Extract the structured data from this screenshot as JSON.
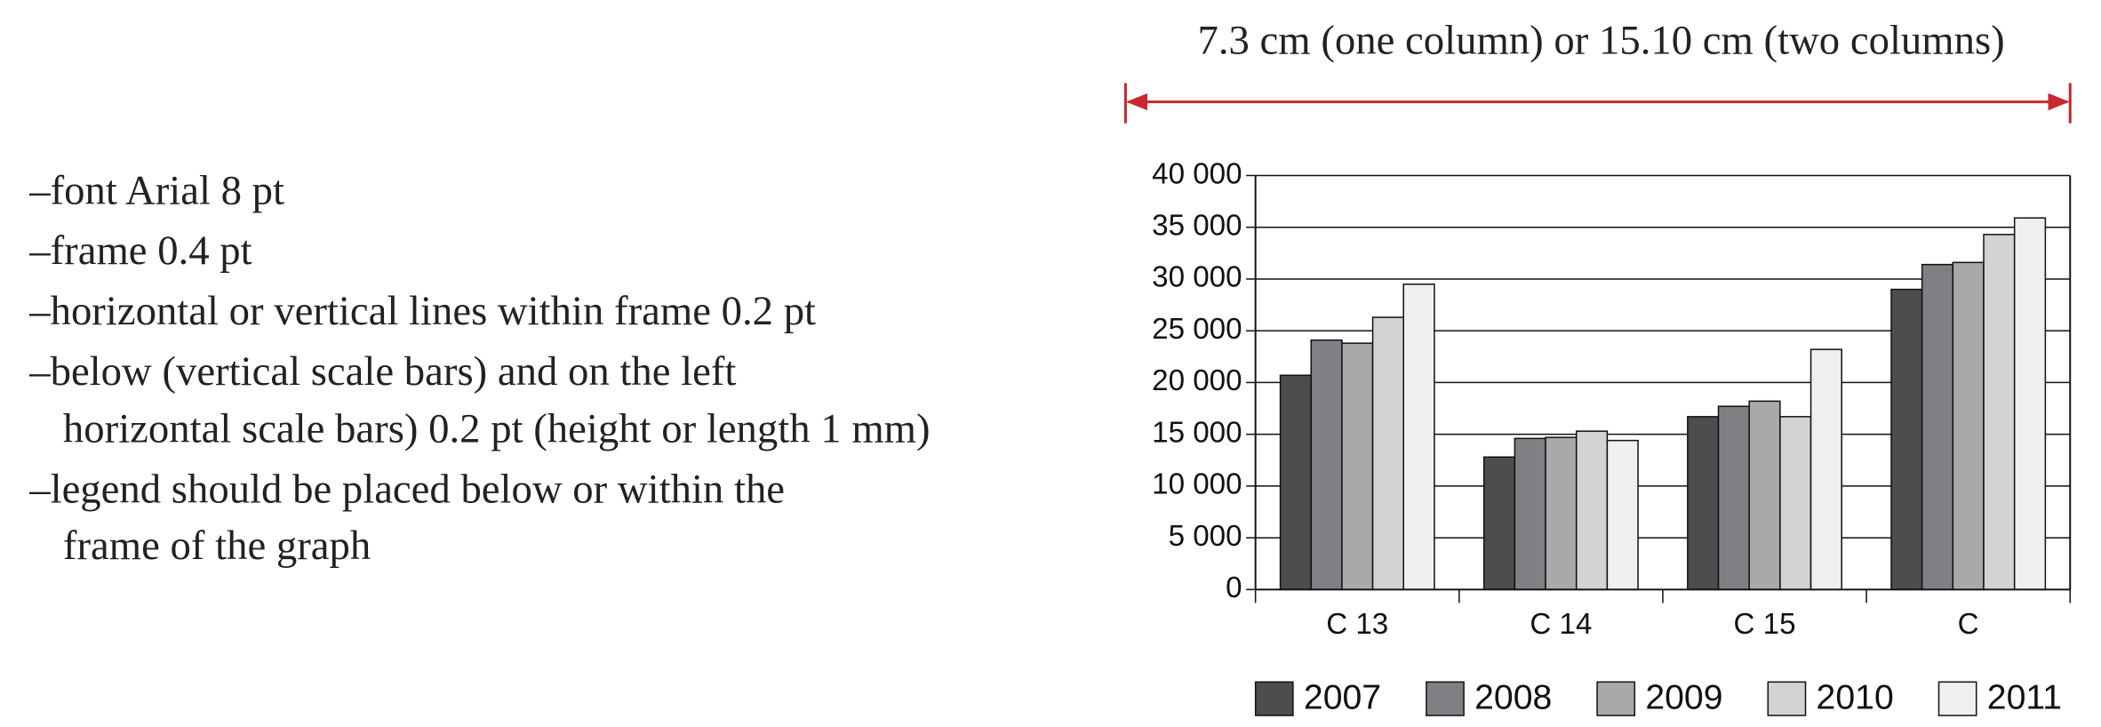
{
  "header": {
    "width_note": "7.3 cm (one column) or 15.10 cm (two columns)"
  },
  "guidelines": [
    [
      "–font Arial 8 pt"
    ],
    [
      "–frame 0.4 pt"
    ],
    [
      "–horizontal or vertical lines within frame 0.2 pt"
    ],
    [
      "–below (vertical scale bars) and on the left",
      "horizontal scale bars) 0.2 pt (height or length 1 mm)"
    ],
    [
      "–legend should be placed below or within the",
      "frame of the graph"
    ]
  ],
  "chart_data": {
    "type": "bar",
    "categories": [
      "C 13",
      "C 14",
      "C 15",
      "C"
    ],
    "series": [
      {
        "name": "2007",
        "color": "#4d4d4f",
        "values": [
          20700,
          12800,
          16700,
          29000
        ]
      },
      {
        "name": "2008",
        "color": "#808084",
        "values": [
          24100,
          14600,
          17700,
          31400
        ]
      },
      {
        "name": "2009",
        "color": "#a9a9ac",
        "values": [
          23800,
          14700,
          18200,
          31600
        ]
      },
      {
        "name": "2010",
        "color": "#d3d3d5",
        "values": [
          26300,
          15300,
          16700,
          34300
        ]
      },
      {
        "name": "2011",
        "color": "#efefef",
        "values": [
          29500,
          14400,
          23200,
          35900
        ]
      }
    ],
    "ylim": [
      0,
      40000
    ],
    "yticks": [
      0,
      {
        "value": 5000,
        "label": "5 000"
      },
      {
        "value": 10000,
        "label": "10 000"
      },
      {
        "value": 15000,
        "label": "15 000"
      },
      {
        "value": 20000,
        "label": "20 000"
      },
      {
        "value": 25000,
        "label": "25 000"
      },
      {
        "value": 30000,
        "label": "30 000"
      },
      {
        "value": 35000,
        "label": "35 000"
      },
      {
        "value": 40000,
        "label": "40 000"
      }
    ],
    "grid": true,
    "legend": "bottom"
  }
}
